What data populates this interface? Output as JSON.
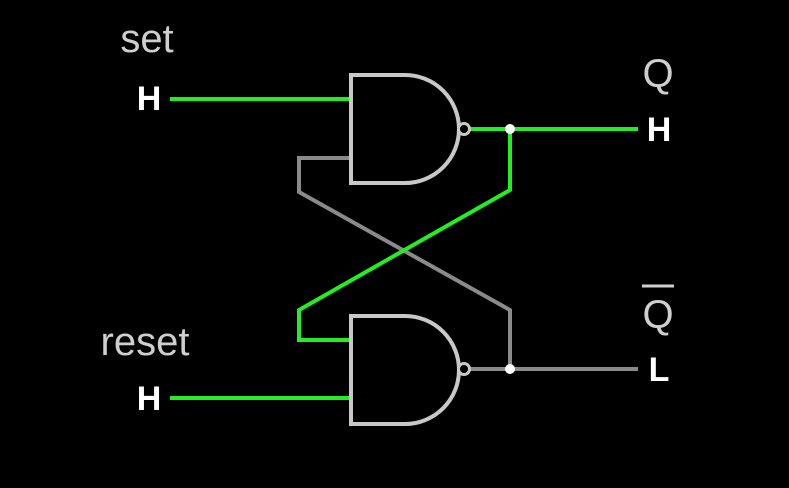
{
  "labels": {
    "set": "set",
    "reset": "reset",
    "q": "Q",
    "q_bar": "Q"
  },
  "levels": {
    "set_input": "H",
    "reset_input": "H",
    "q_output": "H",
    "q_bar_output": "L"
  },
  "signal_states": {
    "set": "high",
    "reset": "high",
    "q": "high",
    "q_bar": "low"
  },
  "colors": {
    "background": "#000000",
    "high_wire": "#22ee22",
    "low_wire": "#8a8a8a",
    "gate_outline": "#c8c8c8",
    "label_text": "#cfcfcf",
    "level_text": "#ffffff"
  },
  "gates": [
    "nand",
    "nand"
  ]
}
